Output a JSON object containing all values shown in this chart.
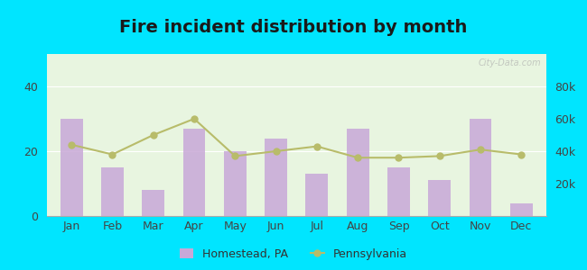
{
  "title": "Fire incident distribution by month",
  "months": [
    "Jan",
    "Feb",
    "Mar",
    "Apr",
    "May",
    "Jun",
    "Jul",
    "Aug",
    "Sep",
    "Oct",
    "Nov",
    "Dec"
  ],
  "homestead_values": [
    30,
    15,
    8,
    27,
    20,
    24,
    13,
    27,
    15,
    11,
    30,
    4
  ],
  "pennsylvania_values": [
    44000,
    38000,
    50000,
    60000,
    37000,
    40000,
    43000,
    36000,
    36000,
    37000,
    41000,
    38000
  ],
  "bar_color": "#c8a8d8",
  "line_color": "#b8bc6a",
  "line_marker": "o",
  "left_ylim": [
    0,
    50
  ],
  "left_yticks": [
    0,
    20,
    40
  ],
  "right_ylim": [
    0,
    100000
  ],
  "right_yticks": [
    20000,
    40000,
    60000,
    80000
  ],
  "right_yticklabels": [
    "20k",
    "40k",
    "60k",
    "80k"
  ],
  "plot_bg_color": "#e8f5e0",
  "outer_background": "#00e5ff",
  "title_fontsize": 14,
  "tick_fontsize": 9,
  "legend_homestead": "Homestead, PA",
  "legend_pennsylvania": "Pennsylvania",
  "watermark": "City-Data.com"
}
